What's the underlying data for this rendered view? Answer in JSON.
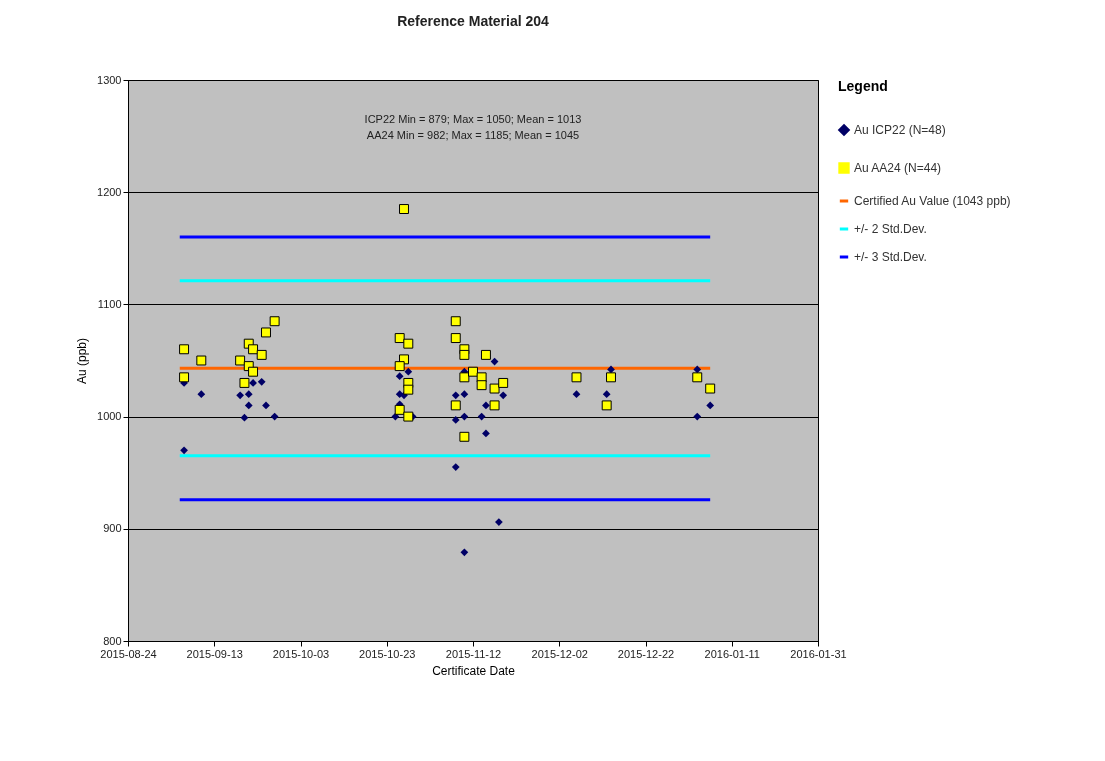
{
  "chart_data": {
    "type": "scatter",
    "title": "Reference Material 204",
    "xlabel": "Certificate Date",
    "ylabel": "Au (ppb)",
    "legend_title": "Legend",
    "legend": "right",
    "grid": "y",
    "annotations": [
      "ICP22 Min = 879; Max = 1050; Mean = 1013",
      "AA24 Min = 982; Max = 1185; Mean = 1045"
    ],
    "xlim": [
      "2015-08-24",
      "2016-01-31"
    ],
    "xticks": [
      {
        "value": "2015-08-24",
        "label": "2015-08-24"
      },
      {
        "value": "2015-09-13",
        "label": "2015-09-13"
      },
      {
        "value": "2015-10-03",
        "label": "2015-10-03"
      },
      {
        "value": "2015-10-23",
        "label": "2015-10-23"
      },
      {
        "value": "2015-11-12",
        "label": "2015-11-12"
      },
      {
        "value": "2015-12-02",
        "label": "2015-12-02"
      },
      {
        "value": "2015-12-22",
        "label": "2015-12-22"
      },
      {
        "value": "2016-01-11",
        "label": "2016-01-11"
      },
      {
        "value": "2016-01-31",
        "label": "2016-01-31"
      }
    ],
    "ylim": [
      800,
      1300
    ],
    "yticks": [
      800,
      900,
      1000,
      1100,
      1200,
      1300
    ],
    "series": [
      {
        "name": "Au ICP22 (N=48)",
        "marker": "diamond",
        "color": "#000066",
        "x": [
          "2015-09-06",
          "2015-09-10",
          "2015-09-19",
          "2015-09-21",
          "2015-09-22",
          "2015-09-24",
          "2015-09-21",
          "2015-09-25",
          "2015-09-20",
          "2015-09-27",
          "2015-09-06",
          "2015-10-26",
          "2015-10-28",
          "2015-10-26",
          "2015-10-27",
          "2015-10-26",
          "2015-10-25",
          "2015-10-29",
          "2015-11-17",
          "2015-11-10",
          "2015-11-08",
          "2015-11-10",
          "2015-11-19",
          "2015-11-15",
          "2015-11-08",
          "2015-11-10",
          "2015-11-14",
          "2015-11-15",
          "2015-11-08",
          "2015-11-18",
          "2015-11-10",
          "2015-12-06",
          "2015-12-13",
          "2015-12-14",
          "2016-01-03",
          "2016-01-06",
          "2016-01-03"
        ],
        "values": [
          1030,
          1020,
          1019,
          1020,
          1030,
          1031,
          1010,
          1010,
          999,
          1000,
          970,
          1036,
          1040,
          1020,
          1019,
          1011,
          1000,
          1000,
          1049,
          1040,
          1019,
          1020,
          1019,
          1010,
          997,
          1000,
          1000,
          985,
          955,
          906,
          879,
          1020,
          1020,
          1042,
          1042,
          1010,
          1000
        ]
      },
      {
        "name": "Au AA24 (N=44)",
        "marker": "square",
        "color": "#ffff00",
        "x": [
          "2015-09-06",
          "2015-09-10",
          "2015-09-06",
          "2015-09-19",
          "2015-09-21",
          "2015-09-22",
          "2015-09-24",
          "2015-09-21",
          "2015-09-22",
          "2015-09-20",
          "2015-09-25",
          "2015-09-27",
          "2015-10-27",
          "2015-10-26",
          "2015-10-28",
          "2015-10-27",
          "2015-10-26",
          "2015-10-28",
          "2015-10-28",
          "2015-10-26",
          "2015-10-28",
          "2015-11-08",
          "2015-11-08",
          "2015-11-10",
          "2015-11-10",
          "2015-11-15",
          "2015-11-10",
          "2015-11-12",
          "2015-11-14",
          "2015-11-14",
          "2015-11-17",
          "2015-11-19",
          "2015-11-17",
          "2015-11-08",
          "2015-11-10",
          "2015-12-06",
          "2015-12-14",
          "2015-12-13",
          "2016-01-03",
          "2016-01-06"
        ],
        "values": [
          1060,
          1050,
          1035,
          1050,
          1065,
          1060,
          1055,
          1045,
          1040,
          1030,
          1075,
          1085,
          1185,
          1070,
          1065,
          1051,
          1045,
          1030,
          1024,
          1006,
          1000,
          1085,
          1070,
          1060,
          1055,
          1055,
          1035,
          1040,
          1035,
          1028,
          1025,
          1030,
          1010,
          1010,
          982,
          1035,
          1035,
          1010,
          1035,
          1025
        ]
      },
      {
        "name": "Certified Au Value (1043 ppb)",
        "type": "line",
        "color": "#ff6600",
        "x": [
          "2015-09-05",
          "2016-01-06"
        ],
        "values": [
          1043,
          1043
        ]
      },
      {
        "name": "+/- 2 Std.Dev.",
        "type": "line",
        "color": "#00ffff",
        "x": [
          "2015-09-05",
          "2016-01-06"
        ],
        "values": [
          1121,
          1121
        ]
      },
      {
        "name": "+/- 3 Std.Dev.",
        "type": "line",
        "color": "#0000ff",
        "x": [
          "2015-09-05",
          "2016-01-06"
        ],
        "values": [
          1160,
          1160
        ]
      },
      {
        "type": "line",
        "color": "#00ffff",
        "x": [
          "2015-09-05",
          "2016-01-06"
        ],
        "values": [
          965,
          965
        ]
      },
      {
        "type": "line",
        "color": "#0000ff",
        "x": [
          "2015-09-05",
          "2016-01-06"
        ],
        "values": [
          926,
          926
        ]
      }
    ]
  }
}
